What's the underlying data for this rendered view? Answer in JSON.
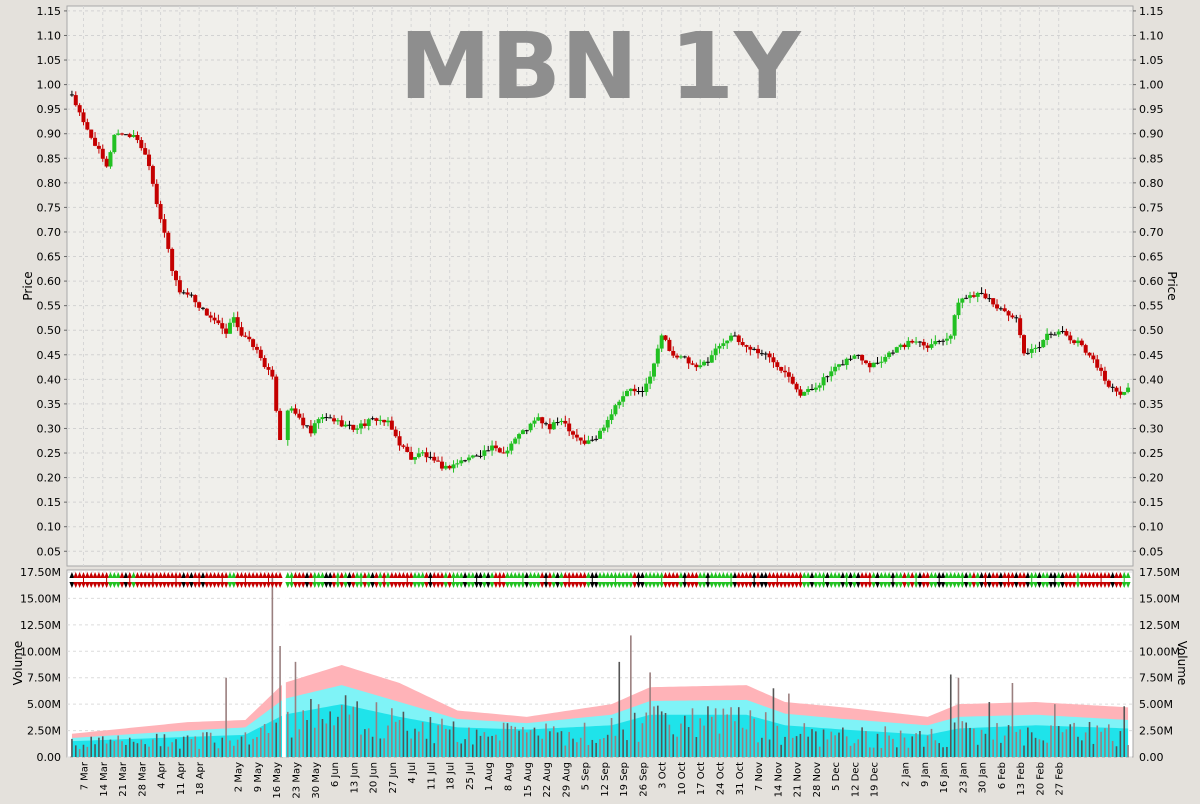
{
  "chart_data": [
    {
      "type": "candlestick",
      "title": "MBN 1Y",
      "ylabel": "Price",
      "ylim": [
        0.02,
        1.16
      ],
      "yticks": [
        "0.05",
        "0.10",
        "0.15",
        "0.20",
        "0.25",
        "0.30",
        "0.35",
        "0.40",
        "0.45",
        "0.50",
        "0.55",
        "0.60",
        "0.65",
        "0.70",
        "0.75",
        "0.80",
        "0.85",
        "0.90",
        "0.95",
        "1.00",
        "1.05",
        "1.10",
        "1.15"
      ],
      "grid": true,
      "colors": {
        "up": "#22c022",
        "down": "#c40000",
        "flat": "#000000"
      },
      "price_path": [
        {
          "day": 0,
          "close": 0.98
        },
        {
          "day": 3,
          "close": 0.92
        },
        {
          "day": 6,
          "close": 0.88
        },
        {
          "day": 9,
          "close": 0.83
        },
        {
          "day": 11,
          "close": 0.9
        },
        {
          "day": 14,
          "close": 0.9
        },
        {
          "day": 17,
          "close": 0.89
        },
        {
          "day": 20,
          "close": 0.84
        },
        {
          "day": 22,
          "close": 0.76
        },
        {
          "day": 24,
          "close": 0.7
        },
        {
          "day": 26,
          "close": 0.62
        },
        {
          "day": 28,
          "close": 0.58
        },
        {
          "day": 31,
          "close": 0.57
        },
        {
          "day": 34,
          "close": 0.54
        },
        {
          "day": 37,
          "close": 0.52
        },
        {
          "day": 40,
          "close": 0.49
        },
        {
          "day": 42,
          "close": 0.53
        },
        {
          "day": 44,
          "close": 0.49
        },
        {
          "day": 47,
          "close": 0.47
        },
        {
          "day": 50,
          "close": 0.43
        },
        {
          "day": 52,
          "close": 0.4
        },
        {
          "day": 54,
          "close": 0.28
        },
        {
          "day": 56,
          "close": 0.34
        },
        {
          "day": 58,
          "close": 0.33
        },
        {
          "day": 60,
          "close": 0.31
        },
        {
          "day": 62,
          "close": 0.29
        },
        {
          "day": 64,
          "close": 0.32
        },
        {
          "day": 67,
          "close": 0.32
        },
        {
          "day": 70,
          "close": 0.31
        },
        {
          "day": 73,
          "close": 0.3
        },
        {
          "day": 76,
          "close": 0.31
        },
        {
          "day": 79,
          "close": 0.32
        },
        {
          "day": 82,
          "close": 0.31
        },
        {
          "day": 85,
          "close": 0.27
        },
        {
          "day": 88,
          "close": 0.24
        },
        {
          "day": 91,
          "close": 0.25
        },
        {
          "day": 94,
          "close": 0.23
        },
        {
          "day": 97,
          "close": 0.22
        },
        {
          "day": 100,
          "close": 0.23
        },
        {
          "day": 103,
          "close": 0.24
        },
        {
          "day": 106,
          "close": 0.25
        },
        {
          "day": 109,
          "close": 0.26
        },
        {
          "day": 112,
          "close": 0.25
        },
        {
          "day": 115,
          "close": 0.28
        },
        {
          "day": 118,
          "close": 0.3
        },
        {
          "day": 121,
          "close": 0.32
        },
        {
          "day": 124,
          "close": 0.3
        },
        {
          "day": 127,
          "close": 0.32
        },
        {
          "day": 130,
          "close": 0.29
        },
        {
          "day": 133,
          "close": 0.27
        },
        {
          "day": 136,
          "close": 0.28
        },
        {
          "day": 139,
          "close": 0.32
        },
        {
          "day": 142,
          "close": 0.36
        },
        {
          "day": 145,
          "close": 0.38
        },
        {
          "day": 148,
          "close": 0.37
        },
        {
          "day": 151,
          "close": 0.43
        },
        {
          "day": 153,
          "close": 0.49
        },
        {
          "day": 156,
          "close": 0.45
        },
        {
          "day": 159,
          "close": 0.44
        },
        {
          "day": 162,
          "close": 0.42
        },
        {
          "day": 165,
          "close": 0.44
        },
        {
          "day": 168,
          "close": 0.47
        },
        {
          "day": 171,
          "close": 0.49
        },
        {
          "day": 174,
          "close": 0.47
        },
        {
          "day": 177,
          "close": 0.46
        },
        {
          "day": 180,
          "close": 0.45
        },
        {
          "day": 183,
          "close": 0.43
        },
        {
          "day": 186,
          "close": 0.41
        },
        {
          "day": 189,
          "close": 0.37
        },
        {
          "day": 192,
          "close": 0.38
        },
        {
          "day": 195,
          "close": 0.4
        },
        {
          "day": 198,
          "close": 0.42
        },
        {
          "day": 201,
          "close": 0.44
        },
        {
          "day": 204,
          "close": 0.45
        },
        {
          "day": 207,
          "close": 0.43
        },
        {
          "day": 210,
          "close": 0.44
        },
        {
          "day": 213,
          "close": 0.46
        },
        {
          "day": 216,
          "close": 0.47
        },
        {
          "day": 219,
          "close": 0.48
        },
        {
          "day": 222,
          "close": 0.47
        },
        {
          "day": 225,
          "close": 0.48
        },
        {
          "day": 228,
          "close": 0.49
        },
        {
          "day": 230,
          "close": 0.56
        },
        {
          "day": 233,
          "close": 0.57
        },
        {
          "day": 236,
          "close": 0.58
        },
        {
          "day": 239,
          "close": 0.55
        },
        {
          "day": 242,
          "close": 0.54
        },
        {
          "day": 245,
          "close": 0.52
        },
        {
          "day": 247,
          "close": 0.45
        },
        {
          "day": 250,
          "close": 0.46
        },
        {
          "day": 253,
          "close": 0.49
        },
        {
          "day": 256,
          "close": 0.5
        },
        {
          "day": 259,
          "close": 0.48
        },
        {
          "day": 262,
          "close": 0.47
        },
        {
          "day": 265,
          "close": 0.44
        },
        {
          "day": 268,
          "close": 0.4
        },
        {
          "day": 271,
          "close": 0.37
        },
        {
          "day": 274,
          "close": 0.38
        }
      ]
    },
    {
      "type": "bar",
      "ylabel": "Volume",
      "ylim": [
        0,
        17500000
      ],
      "yticks": [
        "0.00",
        "2.50M",
        "5.00M",
        "7.50M",
        "10.00M",
        "12.50M",
        "15.00M",
        "17.50M"
      ],
      "grid": true,
      "bar_color": "#8a8a8a",
      "volume_bands": [
        {
          "day": 0,
          "low": 1500000,
          "mid": 1800000,
          "high": 2200000
        },
        {
          "day": 30,
          "low": 1900000,
          "mid": 2500000,
          "high": 3300000
        },
        {
          "day": 45,
          "low": 2100000,
          "mid": 2800000,
          "high": 3500000
        },
        {
          "day": 55,
          "low": 4000000,
          "mid": 5500000,
          "high": 7000000
        },
        {
          "day": 70,
          "low": 5000000,
          "mid": 6800000,
          "high": 8700000
        },
        {
          "day": 85,
          "low": 3800000,
          "mid": 5200000,
          "high": 7000000
        },
        {
          "day": 100,
          "low": 2800000,
          "mid": 3600000,
          "high": 4400000
        },
        {
          "day": 118,
          "low": 2600000,
          "mid": 3200000,
          "high": 3800000
        },
        {
          "day": 140,
          "low": 3000000,
          "mid": 4000000,
          "high": 5000000
        },
        {
          "day": 150,
          "low": 4000000,
          "mid": 5300000,
          "high": 6600000
        },
        {
          "day": 175,
          "low": 4000000,
          "mid": 5400000,
          "high": 6800000
        },
        {
          "day": 185,
          "low": 3000000,
          "mid": 4100000,
          "high": 5200000
        },
        {
          "day": 200,
          "low": 2600000,
          "mid": 3600000,
          "high": 4700000
        },
        {
          "day": 222,
          "low": 2100000,
          "mid": 3000000,
          "high": 3800000
        },
        {
          "day": 230,
          "low": 2700000,
          "mid": 3800000,
          "high": 5000000
        },
        {
          "day": 250,
          "low": 3000000,
          "mid": 4000000,
          "high": 5200000
        },
        {
          "day": 274,
          "low": 2700000,
          "mid": 3500000,
          "high": 4700000
        }
      ],
      "volume_spikes": [
        {
          "day": 52,
          "value": 17000000
        },
        {
          "day": 54,
          "value": 10500000
        },
        {
          "day": 58,
          "value": 9000000
        },
        {
          "day": 40,
          "value": 7500000
        },
        {
          "day": 142,
          "value": 9000000
        },
        {
          "day": 145,
          "value": 11500000
        },
        {
          "day": 150,
          "value": 8000000
        },
        {
          "day": 182,
          "value": 6500000
        },
        {
          "day": 186,
          "value": 6000000
        },
        {
          "day": 228,
          "value": 7800000
        },
        {
          "day": 230,
          "value": 7500000
        },
        {
          "day": 238,
          "value": 5200000
        },
        {
          "day": 244,
          "value": 7000000
        },
        {
          "day": 255,
          "value": 5000000
        },
        {
          "day": 273,
          "value": 4800000
        }
      ]
    }
  ],
  "x_axis": {
    "days_total": 275,
    "date_ticks": [
      {
        "label": "7 Mar",
        "day": 3
      },
      {
        "label": "14 Mar",
        "day": 8
      },
      {
        "label": "21 Mar",
        "day": 13
      },
      {
        "label": "28 Mar",
        "day": 18
      },
      {
        "label": "4 Apr",
        "day": 23
      },
      {
        "label": "11 Apr",
        "day": 28
      },
      {
        "label": "18 Apr",
        "day": 33
      },
      {
        "label": "2 May",
        "day": 43
      },
      {
        "label": "9 May",
        "day": 48
      },
      {
        "label": "16 May",
        "day": 53
      },
      {
        "label": "23 May",
        "day": 58
      },
      {
        "label": "30 May",
        "day": 63
      },
      {
        "label": "6 Jun",
        "day": 68
      },
      {
        "label": "13 Jun",
        "day": 73
      },
      {
        "label": "20 Jun",
        "day": 78
      },
      {
        "label": "27 Jun",
        "day": 83
      },
      {
        "label": "4 Jul",
        "day": 88
      },
      {
        "label": "11 Jul",
        "day": 93
      },
      {
        "label": "18 Jul",
        "day": 98
      },
      {
        "label": "25 Jul",
        "day": 103
      },
      {
        "label": "1 Aug",
        "day": 108
      },
      {
        "label": "8 Aug",
        "day": 113
      },
      {
        "label": "15 Aug",
        "day": 118
      },
      {
        "label": "22 Aug",
        "day": 123
      },
      {
        "label": "29 Aug",
        "day": 128
      },
      {
        "label": "5 Sep",
        "day": 133
      },
      {
        "label": "12 Sep",
        "day": 138
      },
      {
        "label": "19 Sep",
        "day": 143
      },
      {
        "label": "26 Sep",
        "day": 148
      },
      {
        "label": "3 Oct",
        "day": 153
      },
      {
        "label": "10 Oct",
        "day": 158
      },
      {
        "label": "17 Oct",
        "day": 163
      },
      {
        "label": "24 Oct",
        "day": 168
      },
      {
        "label": "31 Oct",
        "day": 173
      },
      {
        "label": "7 Nov",
        "day": 178
      },
      {
        "label": "14 Nov",
        "day": 183
      },
      {
        "label": "21 Nov",
        "day": 188
      },
      {
        "label": "28 Nov",
        "day": 193
      },
      {
        "label": "5 Dec",
        "day": 198
      },
      {
        "label": "12 Dec",
        "day": 203
      },
      {
        "label": "19 Dec",
        "day": 208
      },
      {
        "label": "2 Jan",
        "day": 216
      },
      {
        "label": "9 Jan",
        "day": 221
      },
      {
        "label": "16 Jan",
        "day": 226
      },
      {
        "label": "23 Jan",
        "day": 231
      },
      {
        "label": "30 Jan",
        "day": 236
      },
      {
        "label": "6 Feb",
        "day": 241
      },
      {
        "label": "13 Feb",
        "day": 246
      },
      {
        "label": "20 Feb",
        "day": 251
      },
      {
        "label": "27 Feb",
        "day": 256
      }
    ]
  }
}
